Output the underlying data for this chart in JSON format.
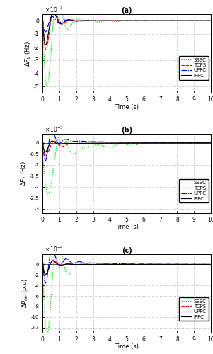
{
  "title_a": "(a)",
  "title_b": "(b)",
  "title_c": "(c)",
  "ylabel_a": "$\\Delta F_1$ (Hz)",
  "ylabel_b": "$\\Delta F_2$ (Hz)",
  "ylabel_c": "$\\Delta P_{tie}$ (p.u)",
  "xlabel": "Time (s)",
  "xlim": [
    0,
    10
  ],
  "legend_labels": [
    "SSSC",
    "TCPS",
    "UPFC",
    "IPFC"
  ],
  "colors": [
    "#00dd00",
    "#ff0000",
    "#0000ff",
    "#000000"
  ],
  "background": "#ffffff",
  "grid_color": "#aaaaaa",
  "ylim_a": [
    -0.0055,
    0.0005
  ],
  "yticks_a": [
    -0.005,
    -0.004,
    -0.003,
    -0.002,
    -0.001,
    0
  ],
  "yticklabels_a": [
    "-5",
    "-4",
    "-3",
    "-2",
    "-1",
    "0"
  ],
  "scale_a": "x 10^{-3}",
  "ylim_b": [
    -0.0032,
    0.0004
  ],
  "yticks_b": [
    -0.003,
    -0.0025,
    -0.002,
    -0.0015,
    -0.001,
    -0.0005,
    0
  ],
  "yticklabels_b": [
    "-3",
    "-2.5",
    "-2",
    "-1.5",
    "-1",
    "-0.5",
    "0"
  ],
  "scale_b": "x 10^{-3}",
  "ylim_c": [
    -0.0013,
    0.0002
  ],
  "yticks_c": [
    -0.0012,
    -0.001,
    -0.0008,
    -0.0006,
    -0.0004,
    -0.0002,
    0
  ],
  "yticklabels_c": [
    "-12",
    "-10",
    "-8",
    "-6",
    "-4",
    "-2",
    "0"
  ],
  "scale_c": "x 10^{-4}"
}
